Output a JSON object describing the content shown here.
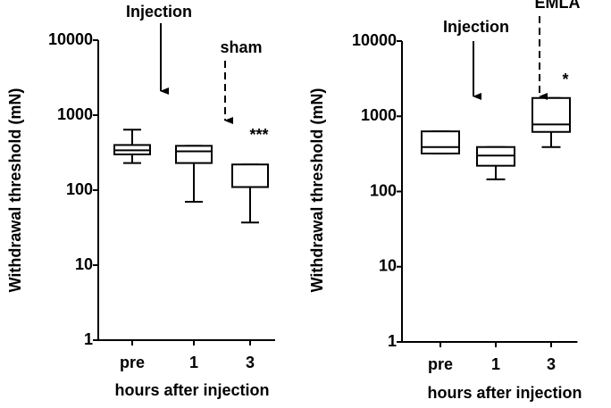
{
  "chart_data": [
    {
      "type": "box",
      "ylabel": "Withdrawal threshold (mN)",
      "xlabel": "hours after injection",
      "log_scale": true,
      "ylim": [
        1,
        10000
      ],
      "yticks": [
        1,
        10,
        100,
        1000,
        10000
      ],
      "categories": [
        "pre",
        "1",
        "3"
      ],
      "color": "#000000",
      "boxes": [
        {
          "min": 230,
          "q1": 300,
          "median": 340,
          "q3": 400,
          "max": 640
        },
        {
          "min": 70,
          "q1": 230,
          "median": 330,
          "q3": 390,
          "max": 390
        },
        {
          "min": 37,
          "q1": 110,
          "median": 110,
          "q3": 220,
          "max": 220
        }
      ],
      "annotations": [
        "Injection",
        "sham",
        "***"
      ]
    },
    {
      "type": "box",
      "ylabel": "Withdrawal threshold (mN)",
      "xlabel": "hours after injection",
      "log_scale": true,
      "ylim": [
        1,
        10000
      ],
      "yticks": [
        1,
        10,
        100,
        1000,
        10000
      ],
      "categories": [
        "pre",
        "1",
        "3"
      ],
      "color": "#000000",
      "boxes": [
        {
          "min": 320,
          "q1": 320,
          "median": 390,
          "q3": 630,
          "max": 630
        },
        {
          "min": 145,
          "q1": 220,
          "median": 300,
          "q3": 390,
          "max": 390
        },
        {
          "min": 390,
          "q1": 620,
          "median": 780,
          "q3": 1750,
          "max": 1750
        }
      ],
      "annotations": [
        "Injection",
        "EMLA",
        "*"
      ]
    }
  ]
}
